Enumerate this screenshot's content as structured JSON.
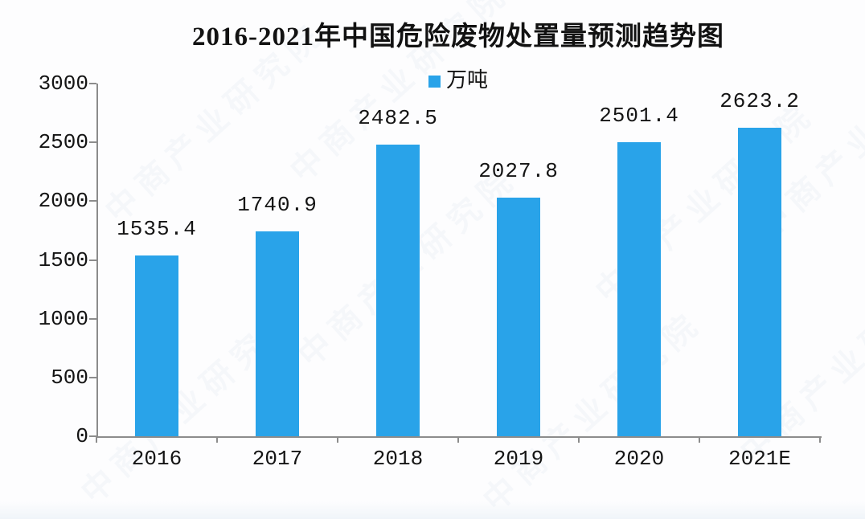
{
  "title": "2016-2021年中国危险废物处置量预测趋势图",
  "legend": {
    "label": "万吨",
    "marker_color": "#29A3E9"
  },
  "watermark": {
    "text": "中商产业研究院"
  },
  "colors": {
    "bar": "#29A3E9",
    "axis": "#8c8c8c",
    "text": "#141414"
  },
  "chart_data": {
    "type": "bar",
    "title": "2016-2021年中国危险废物处置量预测趋势图",
    "categories": [
      "2016",
      "2017",
      "2018",
      "2019",
      "2020",
      "2021E"
    ],
    "values": [
      1535.4,
      1740.9,
      2482.5,
      2027.8,
      2501.4,
      2623.2
    ],
    "value_labels": [
      "1535.4",
      "1740.9",
      "2482.5",
      "2027.8",
      "2501.4",
      "2623.2"
    ],
    "series_name": "万吨",
    "xlabel": "",
    "ylabel": "",
    "ylim": [
      0,
      3000
    ],
    "yticks": [
      0,
      500,
      1000,
      1500,
      2000,
      2500,
      3000
    ],
    "grid": false,
    "legend_position": "top-center",
    "bar_color": "#29A3E9"
  }
}
